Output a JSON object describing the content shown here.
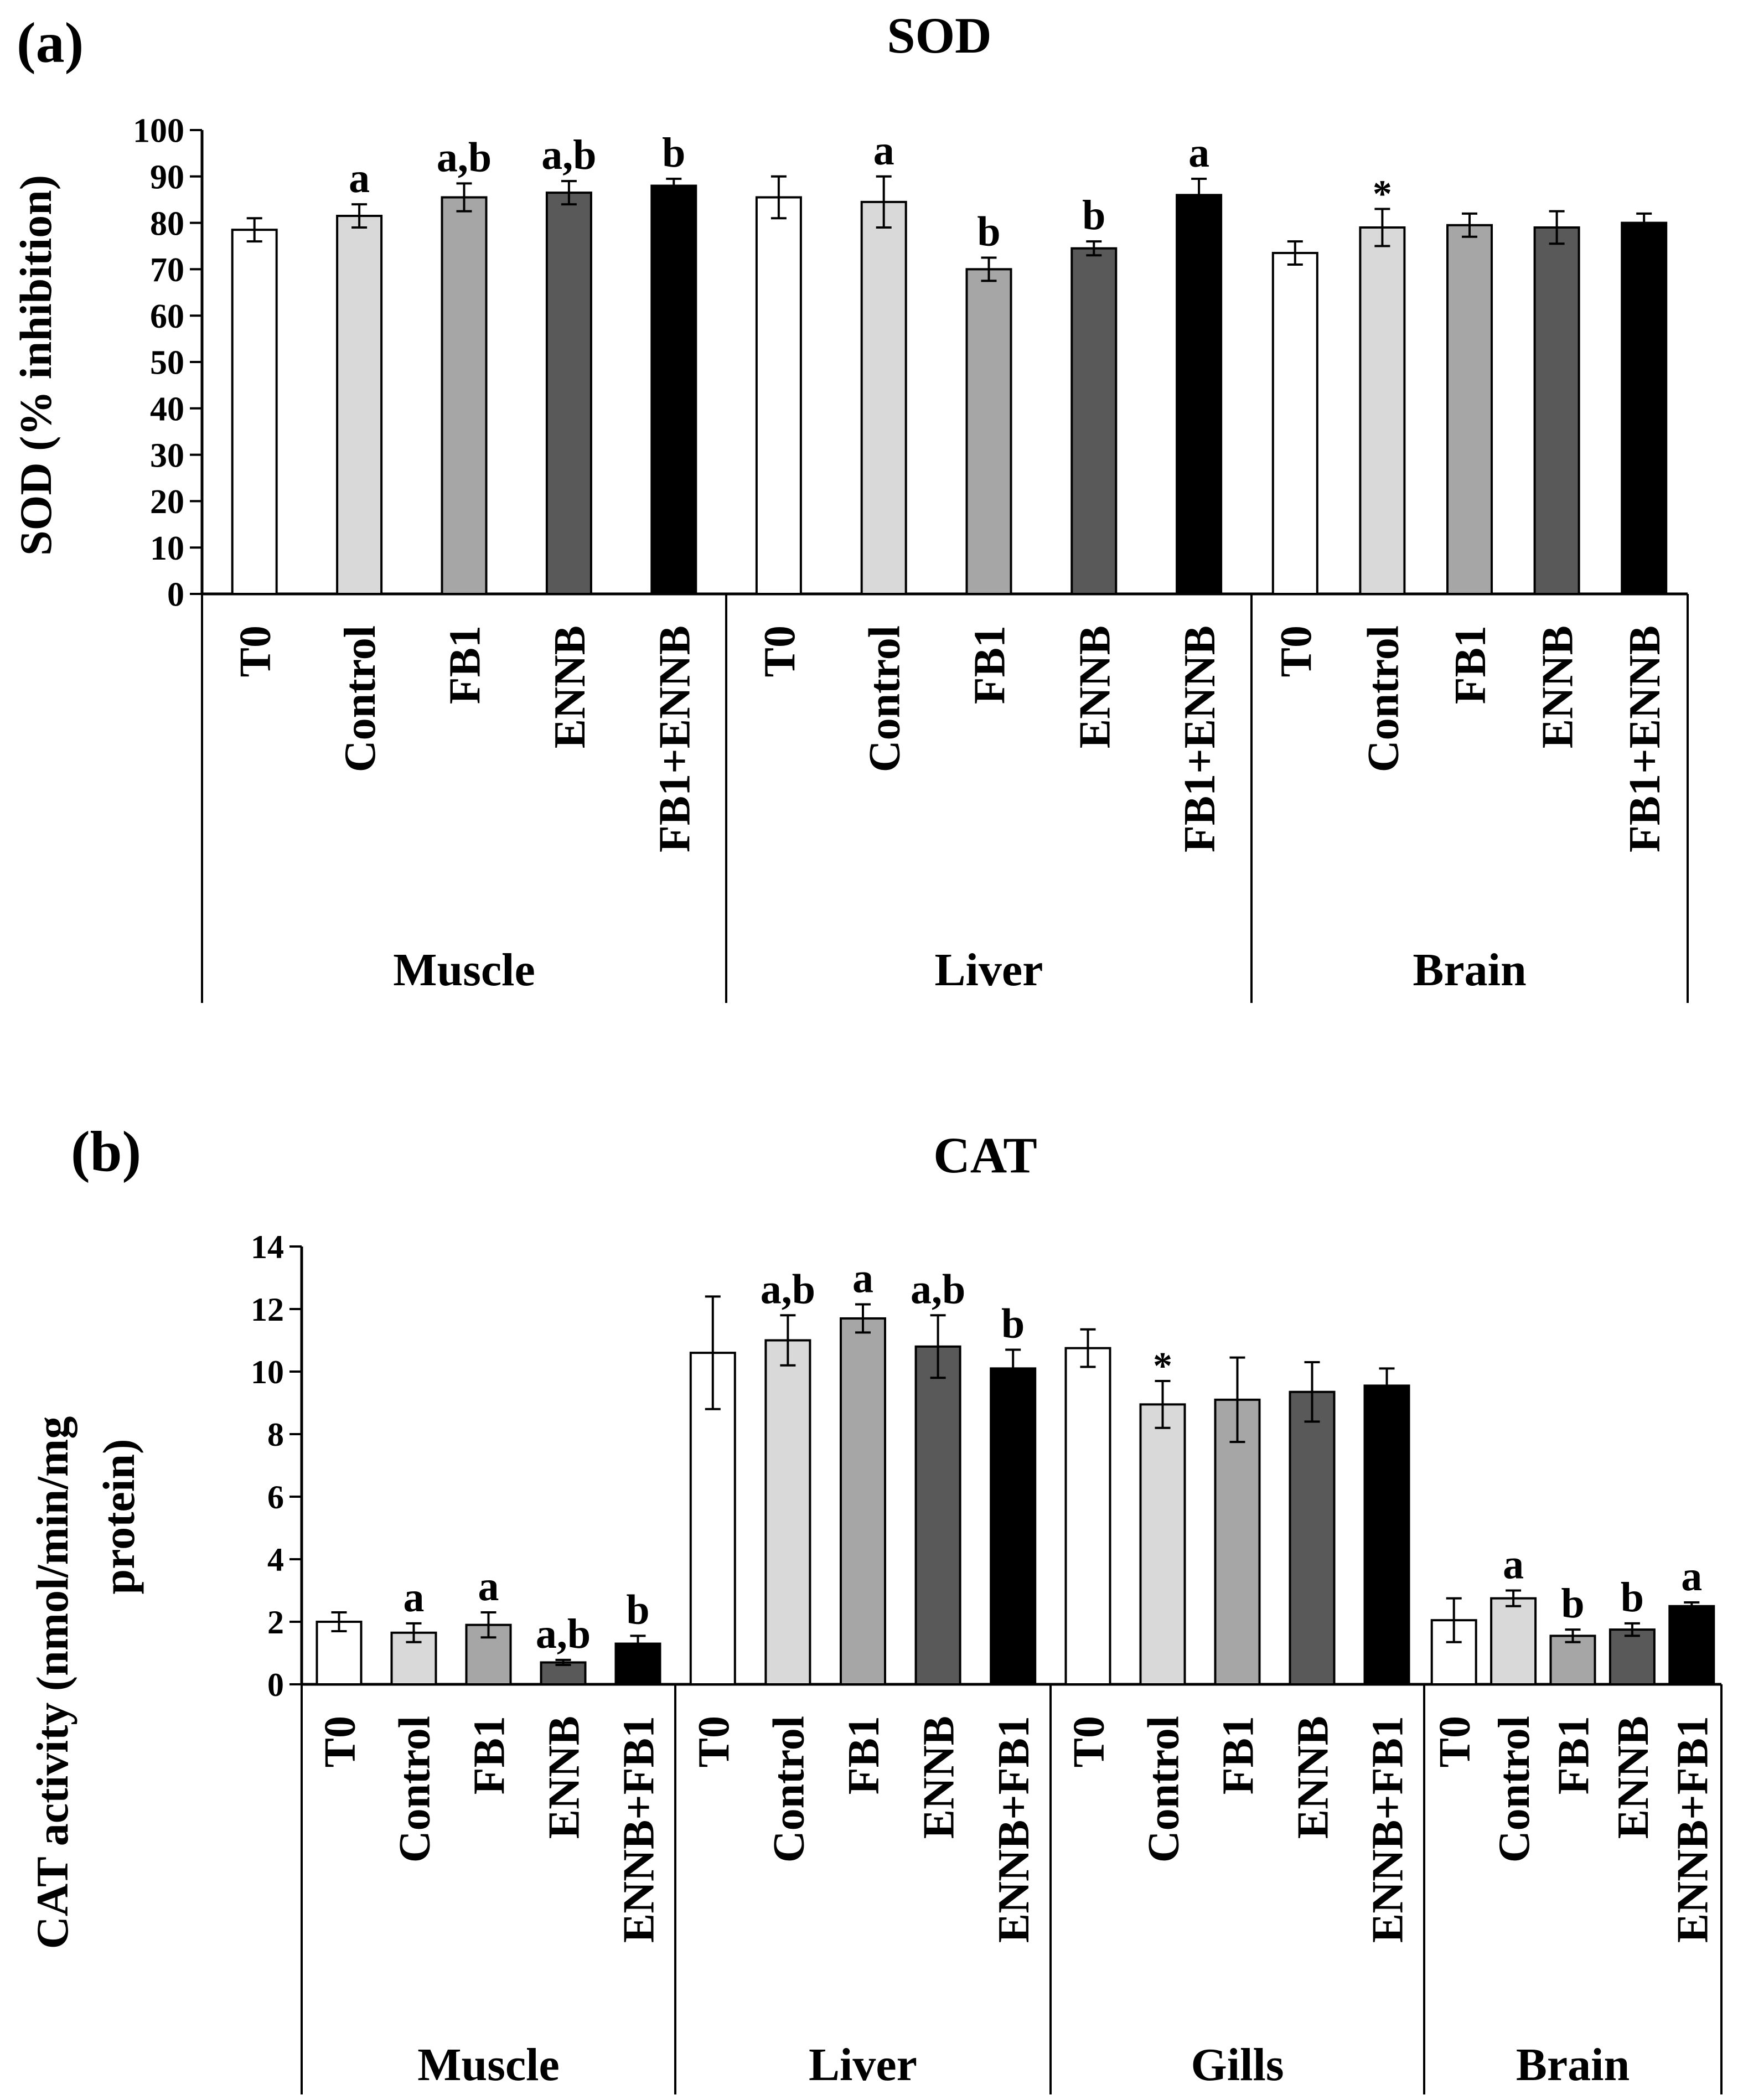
{
  "chart_data": [
    {
      "panel_label": "(a)",
      "type": "bar",
      "title": "SOD",
      "ylabel": "SOD (% inhibition)",
      "xlabel": "",
      "ylim": [
        0,
        100
      ],
      "yticks": [
        "0",
        "10",
        "20",
        "30",
        "40",
        "50",
        "60",
        "70",
        "80",
        "90",
        "100"
      ],
      "grid": false,
      "groups": [
        {
          "name": "Muscle",
          "bars": [
            {
              "label": "T0",
              "value": 78.5,
              "error": 2.5,
              "annotation": ""
            },
            {
              "label": "Control",
              "value": 81.5,
              "error": 2.5,
              "annotation": "a"
            },
            {
              "label": "FB1",
              "value": 85.5,
              "error": 3.0,
              "annotation": "a,b"
            },
            {
              "label": "ENNB",
              "value": 86.5,
              "error": 2.5,
              "annotation": "a,b"
            },
            {
              "label": "FB1+ENNB",
              "value": 88.0,
              "error": 1.5,
              "annotation": "b"
            }
          ]
        },
        {
          "name": "Liver",
          "bars": [
            {
              "label": "T0",
              "value": 85.5,
              "error": 4.5,
              "annotation": ""
            },
            {
              "label": "Control",
              "value": 84.5,
              "error": 5.5,
              "annotation": "a"
            },
            {
              "label": "FB1",
              "value": 70.0,
              "error": 2.5,
              "annotation": "b"
            },
            {
              "label": "ENNB",
              "value": 74.5,
              "error": 1.5,
              "annotation": "b"
            },
            {
              "label": "FB1+ENNB",
              "value": 86.0,
              "error": 3.5,
              "annotation": "a"
            }
          ]
        },
        {
          "name": "Brain",
          "bars": [
            {
              "label": "T0",
              "value": 73.5,
              "error": 2.5,
              "annotation": ""
            },
            {
              "label": "Control",
              "value": 79.0,
              "error": 4.0,
              "annotation": "*"
            },
            {
              "label": "FB1",
              "value": 79.5,
              "error": 2.5,
              "annotation": ""
            },
            {
              "label": "ENNB",
              "value": 79.0,
              "error": 3.5,
              "annotation": ""
            },
            {
              "label": "FB1+ENNB",
              "value": 80.0,
              "error": 2.0,
              "annotation": ""
            }
          ]
        }
      ]
    },
    {
      "panel_label": "(b)",
      "type": "bar",
      "title": "CAT",
      "ylabel_lines": [
        "CAT activity (nmol/min/mg",
        "protein)"
      ],
      "xlabel": "",
      "ylim": [
        0,
        14
      ],
      "yticks": [
        "0",
        "2",
        "4",
        "6",
        "8",
        "10",
        "12",
        "14"
      ],
      "grid": false,
      "groups": [
        {
          "name": "Muscle",
          "bars": [
            {
              "label": "T0",
              "value": 2.0,
              "error": 0.3,
              "annotation": ""
            },
            {
              "label": "Control",
              "value": 1.65,
              "error": 0.3,
              "annotation": "a"
            },
            {
              "label": "FB1",
              "value": 1.9,
              "error": 0.4,
              "annotation": "a"
            },
            {
              "label": "ENNB",
              "value": 0.7,
              "error": 0.08,
              "annotation": "a,b"
            },
            {
              "label": "ENNB+FB1",
              "value": 1.3,
              "error": 0.25,
              "annotation": "b"
            }
          ]
        },
        {
          "name": "Liver",
          "bars": [
            {
              "label": "T0",
              "value": 10.6,
              "error": 1.8,
              "annotation": ""
            },
            {
              "label": "Control",
              "value": 11.0,
              "error": 0.8,
              "annotation": "a,b"
            },
            {
              "label": "FB1",
              "value": 11.7,
              "error": 0.45,
              "annotation": "a"
            },
            {
              "label": "ENNB",
              "value": 10.8,
              "error": 1.0,
              "annotation": "a,b"
            },
            {
              "label": "ENNB+FB1",
              "value": 10.1,
              "error": 0.6,
              "annotation": "b"
            }
          ]
        },
        {
          "name": "Gills",
          "bars": [
            {
              "label": "T0",
              "value": 10.75,
              "error": 0.6,
              "annotation": ""
            },
            {
              "label": "Control",
              "value": 8.95,
              "error": 0.75,
              "annotation": "*"
            },
            {
              "label": "FB1",
              "value": 9.1,
              "error": 1.35,
              "annotation": ""
            },
            {
              "label": "ENNB",
              "value": 9.35,
              "error": 0.95,
              "annotation": ""
            },
            {
              "label": "ENNB+FB1",
              "value": 9.55,
              "error": 0.55,
              "annotation": ""
            }
          ]
        },
        {
          "name": "Brain",
          "bars": [
            {
              "label": "T0",
              "value": 2.05,
              "error": 0.7,
              "annotation": ""
            },
            {
              "label": "Control",
              "value": 2.75,
              "error": 0.25,
              "annotation": "a"
            },
            {
              "label": "FB1",
              "value": 1.55,
              "error": 0.2,
              "annotation": "b"
            },
            {
              "label": "ENNB",
              "value": 1.75,
              "error": 0.2,
              "annotation": "b"
            },
            {
              "label": "ENNB+FB1",
              "value": 2.5,
              "error": 0.12,
              "annotation": "a"
            }
          ]
        }
      ]
    }
  ],
  "colors": [
    "#ffffff",
    "#d9d9d9",
    "#a6a6a6",
    "#595959",
    "#000000"
  ]
}
